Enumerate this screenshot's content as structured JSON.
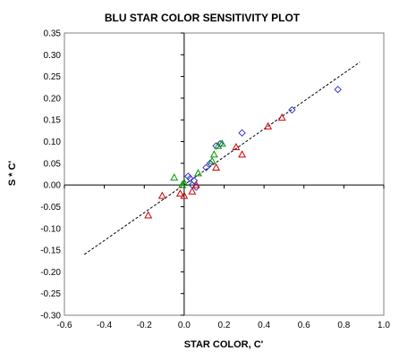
{
  "chart_data": {
    "type": "scatter",
    "title": "BLU STAR COLOR SENSITIVITY PLOT",
    "xlabel": "STAR COLOR, C'",
    "ylabel": "S * C'",
    "xlim": [
      -0.6,
      1.0
    ],
    "ylim": [
      -0.3,
      0.35
    ],
    "xticks": [
      -0.6,
      -0.4,
      -0.2,
      0.0,
      0.2,
      0.4,
      0.6,
      0.8,
      1.0
    ],
    "yticks": [
      -0.3,
      -0.25,
      -0.2,
      -0.15,
      -0.1,
      -0.05,
      0.0,
      0.05,
      0.1,
      0.15,
      0.2,
      0.25,
      0.3,
      0.35
    ],
    "xtick_labels": [
      "-0.6",
      "-0.4",
      "-0.2",
      "0.0",
      "0.2",
      "0.4",
      "0.6",
      "0.8",
      "1.0"
    ],
    "ytick_labels": [
      "-0.30",
      "-0.25",
      "-0.20",
      "-0.15",
      "-0.10",
      "-0.05",
      "0.00",
      "0.05",
      "0.10",
      "0.15",
      "0.20",
      "0.25",
      "0.30",
      "0.35"
    ],
    "grid": false,
    "legend": "none",
    "trendline": {
      "style": "dashed",
      "color": "#000000",
      "x": [
        -0.5,
        0.88
      ],
      "y": [
        -0.16,
        0.283
      ]
    },
    "series": [
      {
        "marker": "diamond",
        "color": "#3333cc",
        "x": [
          0.77,
          0.54,
          0.29,
          0.18,
          0.16,
          0.13,
          0.11,
          0.06,
          0.05,
          0.04,
          0.03,
          0.02
        ],
        "y": [
          0.22,
          0.173,
          0.12,
          0.095,
          0.09,
          0.05,
          0.04,
          -0.005,
          0.01,
          0.0,
          0.015,
          0.02
        ]
      },
      {
        "marker": "triangle",
        "color": "#cc0000",
        "x": [
          -0.18,
          -0.11,
          -0.02,
          0.0,
          0.04,
          0.06,
          0.16,
          0.26,
          0.29,
          0.42,
          0.49
        ],
        "y": [
          -0.07,
          -0.025,
          -0.02,
          -0.025,
          -0.015,
          0.0,
          0.04,
          0.087,
          0.07,
          0.135,
          0.155
        ]
      },
      {
        "marker": "triangle",
        "color": "#009900",
        "x": [
          -0.05,
          -0.01,
          0.0,
          0.07,
          0.14,
          0.15,
          0.17,
          0.19
        ],
        "y": [
          0.017,
          0.0,
          0.005,
          0.027,
          0.055,
          0.07,
          0.09,
          0.095
        ]
      }
    ]
  }
}
